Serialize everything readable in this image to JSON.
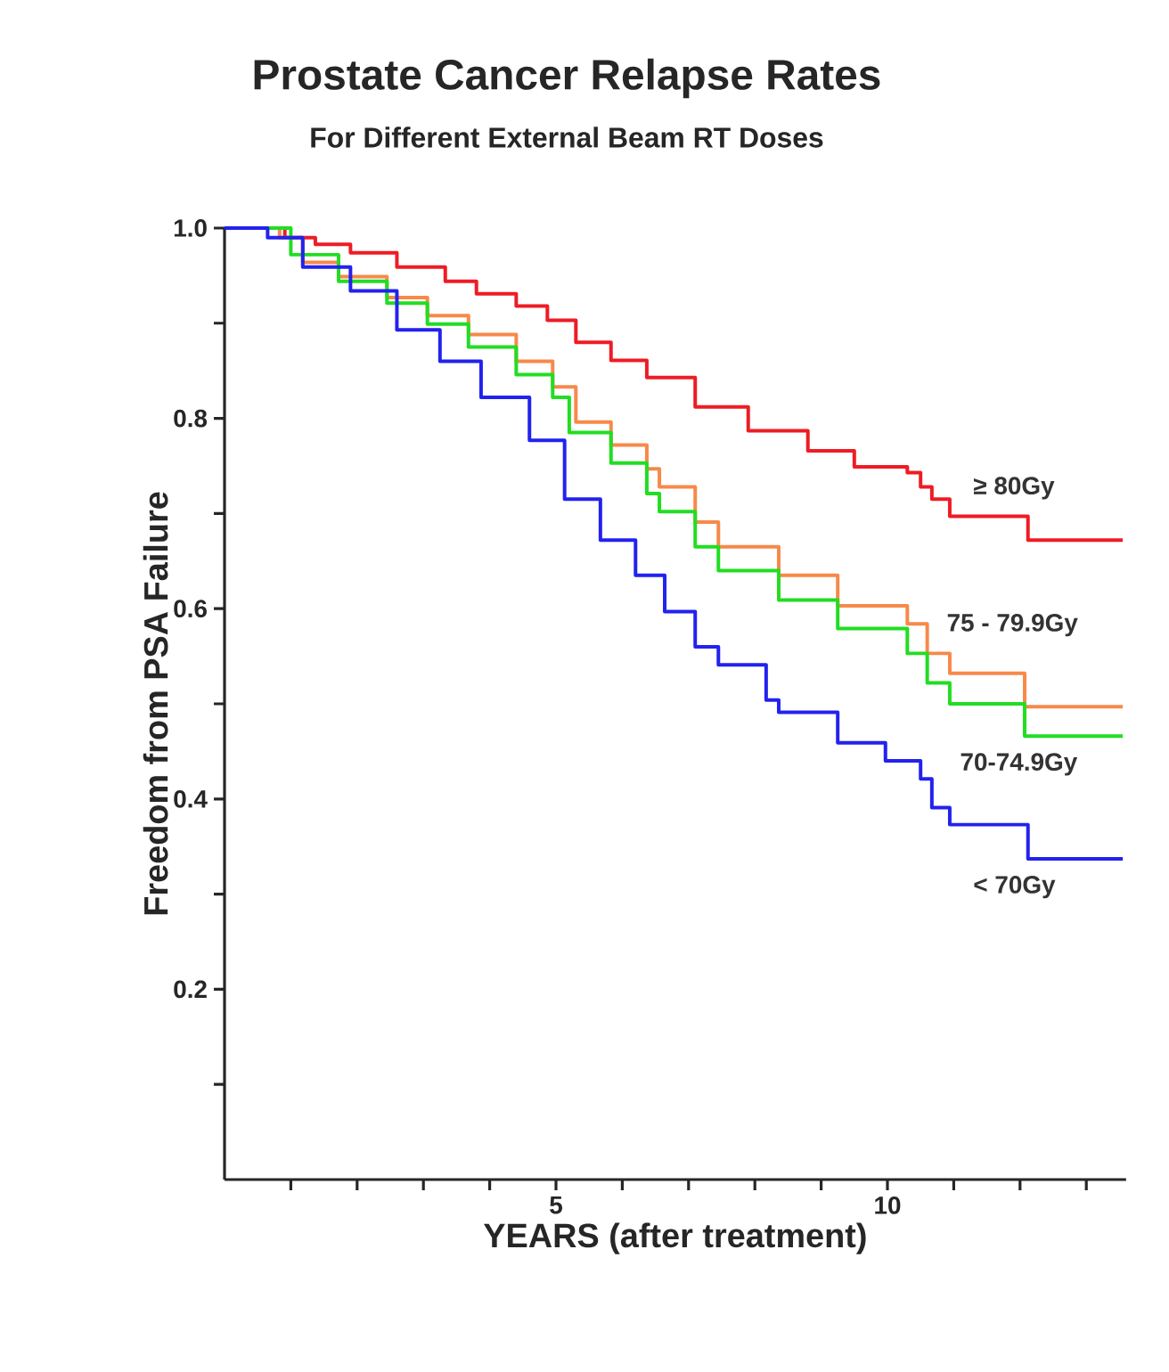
{
  "chart_data": {
    "type": "step",
    "title": "Prostate Cancer Relapse Rates",
    "subtitle": "For Different External Beam RT Doses",
    "xlabel": "YEARS  (after treatment)",
    "ylabel": "Freedom from PSA Failure",
    "xlim": [
      0,
      13.6
    ],
    "ylim": [
      0,
      1
    ],
    "xticks": [
      {
        "value": 1,
        "label": null
      },
      {
        "value": 2,
        "label": null
      },
      {
        "value": 3,
        "label": null
      },
      {
        "value": 4,
        "label": null
      },
      5,
      {
        "value": 6,
        "label": null
      },
      {
        "value": 7,
        "label": null
      },
      {
        "value": 8,
        "label": null
      },
      {
        "value": 9,
        "label": null
      },
      10,
      {
        "value": 11,
        "label": null
      },
      {
        "value": 12,
        "label": null
      },
      {
        "value": 13,
        "label": null
      }
    ],
    "yticks": [
      {
        "value": 0.1,
        "label": null
      },
      0.2,
      {
        "value": 0.3,
        "label": null
      },
      0.4,
      {
        "value": 0.5,
        "label": null
      },
      0.6,
      {
        "value": 0.7,
        "label": null
      },
      0.8,
      {
        "value": 0.9,
        "label": null
      },
      {
        "value": 1,
        "label": "1.0"
      }
    ],
    "grid": false,
    "legend": false,
    "marker": "none",
    "line_style": "solid",
    "series": [
      {
        "name": "≥ 80Gy",
        "color": "#ee1c24",
        "x": [
          0,
          0.91,
          1.37,
          1.9,
          2.6,
          3.33,
          3.8,
          4.4,
          4.87,
          5.3,
          5.83,
          6.37,
          7.1,
          7.9,
          8.8,
          9.5,
          10.3,
          10.5,
          10.67,
          10.94,
          12.0,
          12.12,
          13.55
        ],
        "values": [
          1.0,
          0.99,
          0.983,
          0.974,
          0.959,
          0.944,
          0.931,
          0.918,
          0.903,
          0.88,
          0.861,
          0.843,
          0.812,
          0.787,
          0.766,
          0.749,
          0.743,
          0.728,
          0.715,
          0.697,
          0.697,
          0.672,
          0.672
        ]
      },
      {
        "name": "75 - 79.9Gy",
        "color": "#f7894a",
        "x": [
          0,
          0.83,
          1.18,
          1.72,
          2.45,
          3.06,
          3.68,
          4.4,
          4.95,
          5.3,
          5.83,
          6.37,
          6.56,
          7.1,
          7.45,
          8.36,
          9.25,
          10.3,
          10.6,
          10.94,
          12.0,
          12.07,
          13.55
        ],
        "values": [
          1.0,
          0.99,
          0.964,
          0.949,
          0.927,
          0.908,
          0.888,
          0.86,
          0.833,
          0.796,
          0.772,
          0.747,
          0.728,
          0.691,
          0.665,
          0.635,
          0.603,
          0.584,
          0.553,
          0.532,
          0.532,
          0.497,
          0.497
        ]
      },
      {
        "name": "70-74.9Gy",
        "color": "#22dd22",
        "x": [
          0,
          1.0,
          1.72,
          2.45,
          3.06,
          3.68,
          4.4,
          4.95,
          5.2,
          5.83,
          6.37,
          6.56,
          7.1,
          7.45,
          8.36,
          9.25,
          10.3,
          10.6,
          10.94,
          12.0,
          12.07,
          13.55
        ],
        "values": [
          1.0,
          0.972,
          0.944,
          0.921,
          0.899,
          0.875,
          0.846,
          0.822,
          0.785,
          0.753,
          0.721,
          0.702,
          0.665,
          0.64,
          0.609,
          0.579,
          0.553,
          0.522,
          0.5,
          0.5,
          0.466,
          0.466
        ]
      },
      {
        "name": "< 70Gy",
        "color": "#2222ee",
        "x": [
          0,
          0.3,
          0.65,
          1.18,
          1.9,
          2.6,
          3.25,
          3.87,
          4.6,
          5.13,
          5.67,
          6.2,
          6.64,
          7.1,
          7.45,
          8.17,
          8.36,
          9.25,
          9.97,
          10.5,
          10.67,
          10.94,
          12.0,
          12.12,
          13.55
        ],
        "values": [
          1.0,
          1.0,
          0.99,
          0.959,
          0.934,
          0.893,
          0.86,
          0.822,
          0.777,
          0.715,
          0.672,
          0.635,
          0.597,
          0.56,
          0.541,
          0.504,
          0.491,
          0.459,
          0.44,
          0.421,
          0.391,
          0.373,
          0.373,
          0.337,
          0.337
        ]
      }
    ]
  }
}
